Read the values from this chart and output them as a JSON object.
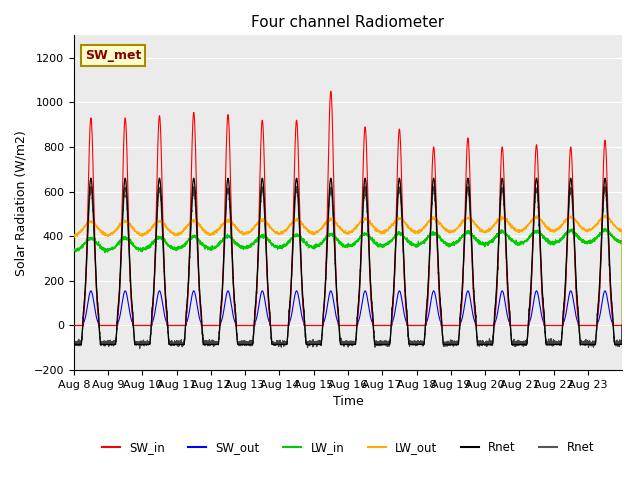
{
  "title": "Four channel Radiometer",
  "xlabel": "Time",
  "ylabel": "Solar Radiation (W/m2)",
  "ylim": [
    -200,
    1300
  ],
  "yticks": [
    -200,
    0,
    200,
    400,
    600,
    800,
    1000,
    1200
  ],
  "x_labels": [
    "Aug 8",
    "Aug 9",
    "Aug 10",
    "Aug 11",
    "Aug 12",
    "Aug 13",
    "Aug 14",
    "Aug 15",
    "Aug 16",
    "Aug 17",
    "Aug 18",
    "Aug 19",
    "Aug 20",
    "Aug 21",
    "Aug 22",
    "Aug 23"
  ],
  "n_days": 16,
  "plot_bg_color": "#ebebeb",
  "annotation_text": "SW_met",
  "annotation_bg": "#ffffcc",
  "annotation_border": "#aa8800",
  "legend_entries": [
    "SW_in",
    "SW_out",
    "LW_in",
    "LW_out",
    "Rnet",
    "Rnet"
  ],
  "legend_colors": [
    "#ff0000",
    "#0000ff",
    "#00cc00",
    "#ffaa00",
    "#000000",
    "#555555"
  ],
  "series_colors": {
    "SW_in": "#ff0000",
    "SW_out": "#0000ff",
    "LW_in": "#00cc00",
    "LW_out": "#ffaa00",
    "Rnet_black": "#000000",
    "Rnet_dark": "#444444"
  },
  "sw_in_peaks": [
    930,
    930,
    940,
    955,
    945,
    920,
    920,
    1050,
    890,
    880,
    800,
    840,
    800,
    810,
    800,
    830
  ]
}
